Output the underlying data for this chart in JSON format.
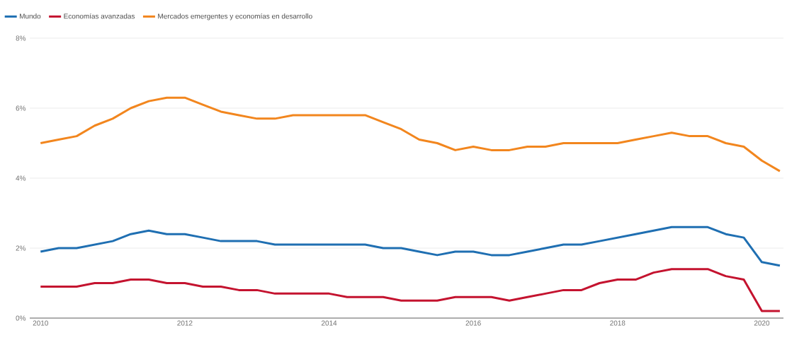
{
  "chart_data": {
    "type": "line",
    "x": [
      2010.0,
      2010.25,
      2010.5,
      2010.75,
      2011.0,
      2011.25,
      2011.5,
      2011.75,
      2012.0,
      2012.25,
      2012.5,
      2012.75,
      2013.0,
      2013.25,
      2013.5,
      2013.75,
      2014.0,
      2014.25,
      2014.5,
      2014.75,
      2015.0,
      2015.25,
      2015.5,
      2015.75,
      2016.0,
      2016.25,
      2016.5,
      2016.75,
      2017.0,
      2017.25,
      2017.5,
      2017.75,
      2018.0,
      2018.25,
      2018.5,
      2018.75,
      2019.0,
      2019.25,
      2019.5,
      2019.75,
      2020.0,
      2020.25
    ],
    "series": [
      {
        "name": "Mundo",
        "color": "#1f6fb2",
        "values": [
          1.9,
          2.0,
          2.0,
          2.1,
          2.2,
          2.4,
          2.5,
          2.4,
          2.4,
          2.3,
          2.2,
          2.2,
          2.2,
          2.1,
          2.1,
          2.1,
          2.1,
          2.1,
          2.1,
          2.0,
          2.0,
          1.9,
          1.8,
          1.9,
          1.9,
          1.8,
          1.8,
          1.9,
          2.0,
          2.1,
          2.1,
          2.2,
          2.3,
          2.4,
          2.5,
          2.6,
          2.6,
          2.6,
          2.4,
          2.3,
          1.6,
          1.5
        ]
      },
      {
        "name": "Economías avanzadas",
        "color": "#c4132f",
        "values": [
          0.9,
          0.9,
          0.9,
          1.0,
          1.0,
          1.1,
          1.1,
          1.0,
          1.0,
          0.9,
          0.9,
          0.8,
          0.8,
          0.7,
          0.7,
          0.7,
          0.7,
          0.6,
          0.6,
          0.6,
          0.5,
          0.5,
          0.5,
          0.6,
          0.6,
          0.6,
          0.5,
          0.6,
          0.7,
          0.8,
          0.8,
          1.0,
          1.1,
          1.1,
          1.3,
          1.4,
          1.4,
          1.4,
          1.2,
          1.1,
          0.2,
          0.2
        ]
      },
      {
        "name": "Mercados emergentes y economías en desarrollo",
        "color": "#f2861e",
        "values": [
          5.0,
          5.1,
          5.2,
          5.5,
          5.7,
          6.0,
          6.2,
          6.3,
          6.3,
          6.1,
          5.9,
          5.8,
          5.7,
          5.7,
          5.8,
          5.8,
          5.8,
          5.8,
          5.8,
          5.6,
          5.4,
          5.1,
          5.0,
          4.8,
          4.9,
          4.8,
          4.8,
          4.9,
          4.9,
          5.0,
          5.0,
          5.0,
          5.0,
          5.1,
          5.2,
          5.3,
          5.2,
          5.2,
          5.0,
          4.9,
          4.5,
          4.2
        ]
      }
    ],
    "xlim": [
      2009.85,
      2020.3
    ],
    "xticks": [
      2010,
      2012,
      2014,
      2016,
      2018,
      2020
    ],
    "ylim": [
      0,
      8
    ],
    "yticks": [
      {
        "value": 0,
        "label": "0%"
      },
      {
        "value": 2,
        "label": "2%"
      },
      {
        "value": 4,
        "label": "4%"
      },
      {
        "value": 6,
        "label": "6%"
      },
      {
        "value": 8,
        "label": "8%"
      }
    ],
    "grid": "y",
    "legend": "top left"
  }
}
